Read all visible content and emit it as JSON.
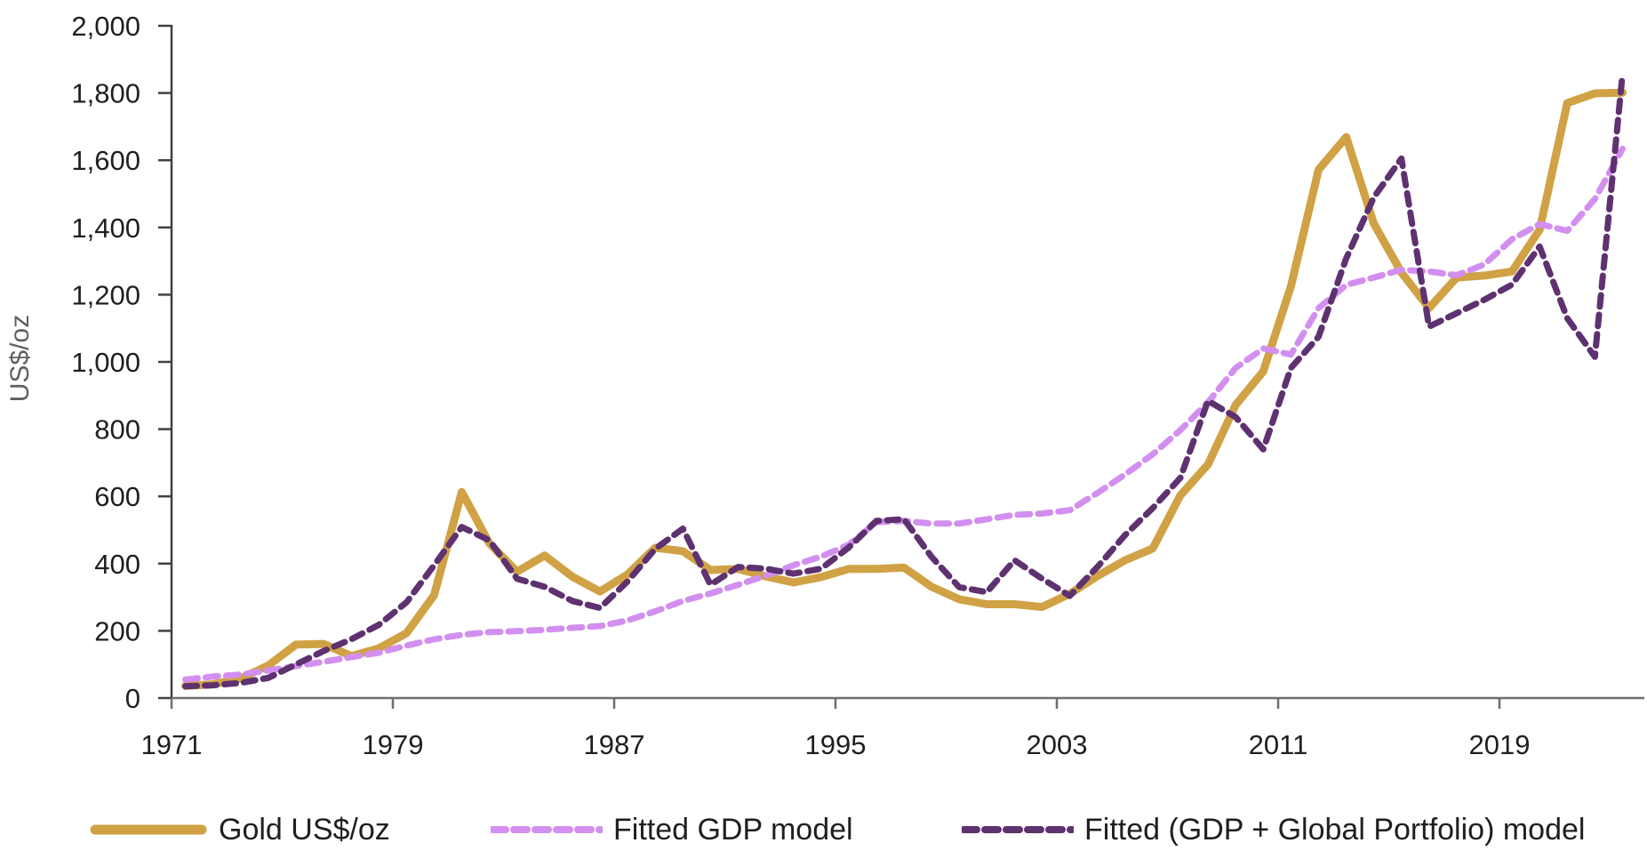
{
  "chart_data": {
    "type": "line",
    "title": "",
    "xlabel": "",
    "ylabel": "US$/oz",
    "ylim": [
      0,
      2000
    ],
    "y_tick_step": 200,
    "grid": false,
    "legend_position": "bottom",
    "y_tick_labels": [
      "0",
      "200",
      "400",
      "600",
      "800",
      "1,000",
      "1,200",
      "1,400",
      "1,600",
      "1,800",
      "2,000"
    ],
    "x_tick_labels": [
      "1971",
      "1979",
      "1987",
      "1995",
      "2003",
      "2011",
      "2019"
    ],
    "x": [
      1970,
      1971,
      1972,
      1973,
      1974,
      1975,
      1976,
      1977,
      1978,
      1979,
      1980,
      1981,
      1982,
      1983,
      1984,
      1985,
      1986,
      1987,
      1988,
      1989,
      1990,
      1991,
      1992,
      1993,
      1994,
      1995,
      1996,
      1997,
      1998,
      1999,
      2000,
      2001,
      2002,
      2003,
      2004,
      2005,
      2006,
      2007,
      2008,
      2009,
      2010,
      2011,
      2012,
      2013,
      2014,
      2015,
      2016,
      2017,
      2018,
      2019,
      2020,
      2021,
      2022
    ],
    "series": [
      {
        "name": "Gold US$/oz",
        "color": "#D0A245",
        "style": "solid",
        "values": [
          36,
          41,
          58,
          97,
          159,
          161,
          125,
          148,
          193,
          306,
          613,
          460,
          376,
          424,
          361,
          317,
          368,
          447,
          437,
          381,
          384,
          362,
          344,
          360,
          384,
          384,
          388,
          331,
          294,
          279,
          279,
          271,
          310,
          363,
          410,
          445,
          603,
          695,
          872,
          972,
          1225,
          1572,
          1669,
          1411,
          1266,
          1160,
          1251,
          1257,
          1269,
          1393,
          1770,
          1799,
          1801
        ]
      },
      {
        "name": "Fitted GDP model",
        "color": "#D28FEF",
        "style": "dashed",
        "values": [
          55,
          64,
          70,
          82,
          95,
          108,
          122,
          135,
          156,
          175,
          188,
          196,
          199,
          203,
          209,
          214,
          231,
          258,
          289,
          311,
          337,
          364,
          395,
          421,
          456,
          523,
          527,
          519,
          519,
          532,
          545,
          549,
          559,
          610,
          665,
          725,
          797,
          880,
          982,
          1040,
          1022,
          1160,
          1229,
          1251,
          1274,
          1269,
          1258,
          1290,
          1365,
          1410,
          1390,
          1485,
          1634
        ]
      },
      {
        "name": "Fitted (GDP + Global Portfolio) model",
        "color": "#5E3170",
        "style": "dashed",
        "values": [
          35,
          38,
          45,
          60,
          100,
          140,
          175,
          218,
          285,
          395,
          509,
          469,
          355,
          331,
          289,
          268,
          347,
          444,
          504,
          337,
          390,
          385,
          370,
          385,
          448,
          527,
          532,
          420,
          330,
          315,
          410,
          355,
          304,
          390,
          485,
          565,
          655,
          884,
          836,
          740,
          982,
          1075,
          1308,
          1490,
          1605,
          1105,
          1145,
          1185,
          1230,
          1343,
          1130,
          1015,
          1858
        ]
      }
    ]
  }
}
